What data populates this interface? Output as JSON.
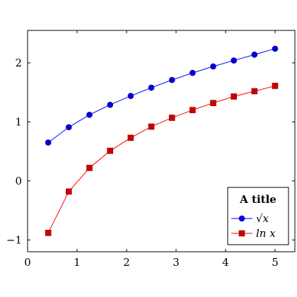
{
  "chart_data": {
    "type": "line",
    "title": "",
    "xlabel": "",
    "ylabel": "",
    "xlim": [
      0,
      5.4
    ],
    "ylim": [
      -1.2,
      2.55
    ],
    "xticks": [
      0,
      1,
      2,
      3,
      4,
      5
    ],
    "xtick_labels": [
      "0",
      "1",
      "2",
      "3",
      "4",
      "5"
    ],
    "yticks": [
      -1,
      0,
      1,
      2
    ],
    "ytick_labels": [
      "−1",
      "0",
      "1",
      "2"
    ],
    "grid": false,
    "legend": {
      "title": "A title",
      "placement": "bottom-right",
      "entries": [
        "√x",
        "ln x"
      ]
    },
    "x": [
      0.417,
      0.833,
      1.25,
      1.667,
      2.083,
      2.5,
      2.917,
      3.333,
      3.75,
      4.167,
      4.583,
      5.0
    ],
    "series": [
      {
        "name": "√x",
        "color": "#0000ff",
        "marker": "circle",
        "values": [
          0.65,
          0.91,
          1.12,
          1.29,
          1.44,
          1.58,
          1.71,
          1.83,
          1.94,
          2.04,
          2.14,
          2.24
        ]
      },
      {
        "name": "ln x",
        "color": "#ff0000",
        "marker": "square",
        "values": [
          -0.88,
          -0.18,
          0.22,
          0.51,
          0.73,
          0.92,
          1.07,
          1.2,
          1.32,
          1.43,
          1.52,
          1.61
        ]
      }
    ]
  }
}
